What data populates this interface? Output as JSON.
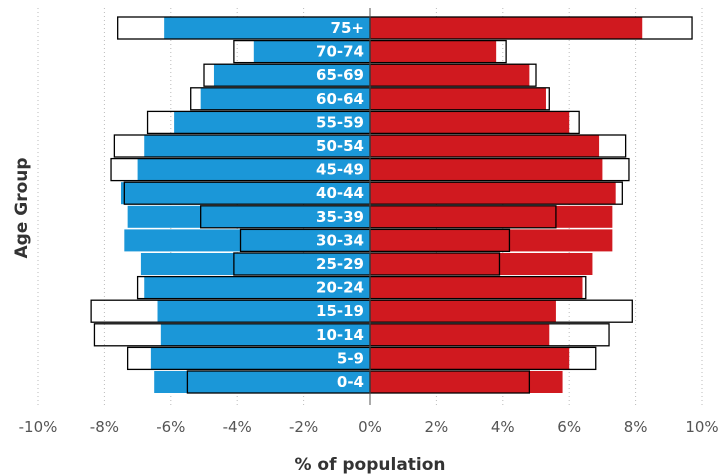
{
  "chart_data": {
    "type": "bar",
    "orientation": "horizontal",
    "categories": [
      "75+",
      "70-74",
      "65-69",
      "60-64",
      "55-59",
      "50-54",
      "45-49",
      "40-44",
      "35-39",
      "30-34",
      "25-29",
      "20-24",
      "15-19",
      "10-14",
      "5-9",
      "0-4"
    ],
    "series": [
      {
        "role": "left-filled",
        "color": "#1b97d8",
        "values": [
          -6.2,
          -3.5,
          -4.7,
          -5.1,
          -5.9,
          -6.8,
          -7.0,
          -7.5,
          -7.3,
          -7.4,
          -6.9,
          -6.8,
          -6.4,
          -6.3,
          -6.6,
          -6.5
        ]
      },
      {
        "role": "right-filled",
        "color": "#d0191f",
        "values": [
          8.2,
          3.8,
          4.8,
          5.3,
          6.0,
          6.9,
          7.0,
          7.4,
          7.3,
          7.3,
          6.7,
          6.4,
          5.6,
          5.4,
          6.0,
          5.8
        ]
      },
      {
        "role": "left-outline",
        "color": "#000000",
        "values": [
          -7.6,
          -4.1,
          -5.0,
          -5.4,
          -6.7,
          -7.7,
          -7.8,
          -7.4,
          -5.1,
          -3.9,
          -4.1,
          -7.0,
          -8.4,
          -8.3,
          -7.3,
          -5.5
        ]
      },
      {
        "role": "right-outline",
        "color": "#000000",
        "values": [
          9.7,
          4.1,
          5.0,
          5.4,
          6.3,
          7.7,
          7.8,
          7.6,
          5.6,
          4.2,
          3.9,
          6.5,
          7.9,
          7.2,
          6.8,
          4.8
        ]
      }
    ],
    "x_ticks": [
      "-10%",
      "-8%",
      "-6%",
      "-4%",
      "-2%",
      "0%",
      "2%",
      "4%",
      "6%",
      "8%",
      "10%"
    ],
    "xlim": [
      -10,
      10
    ],
    "xlabel": "% of population",
    "ylabel": "Age Group",
    "grid": "vertical dotted"
  }
}
